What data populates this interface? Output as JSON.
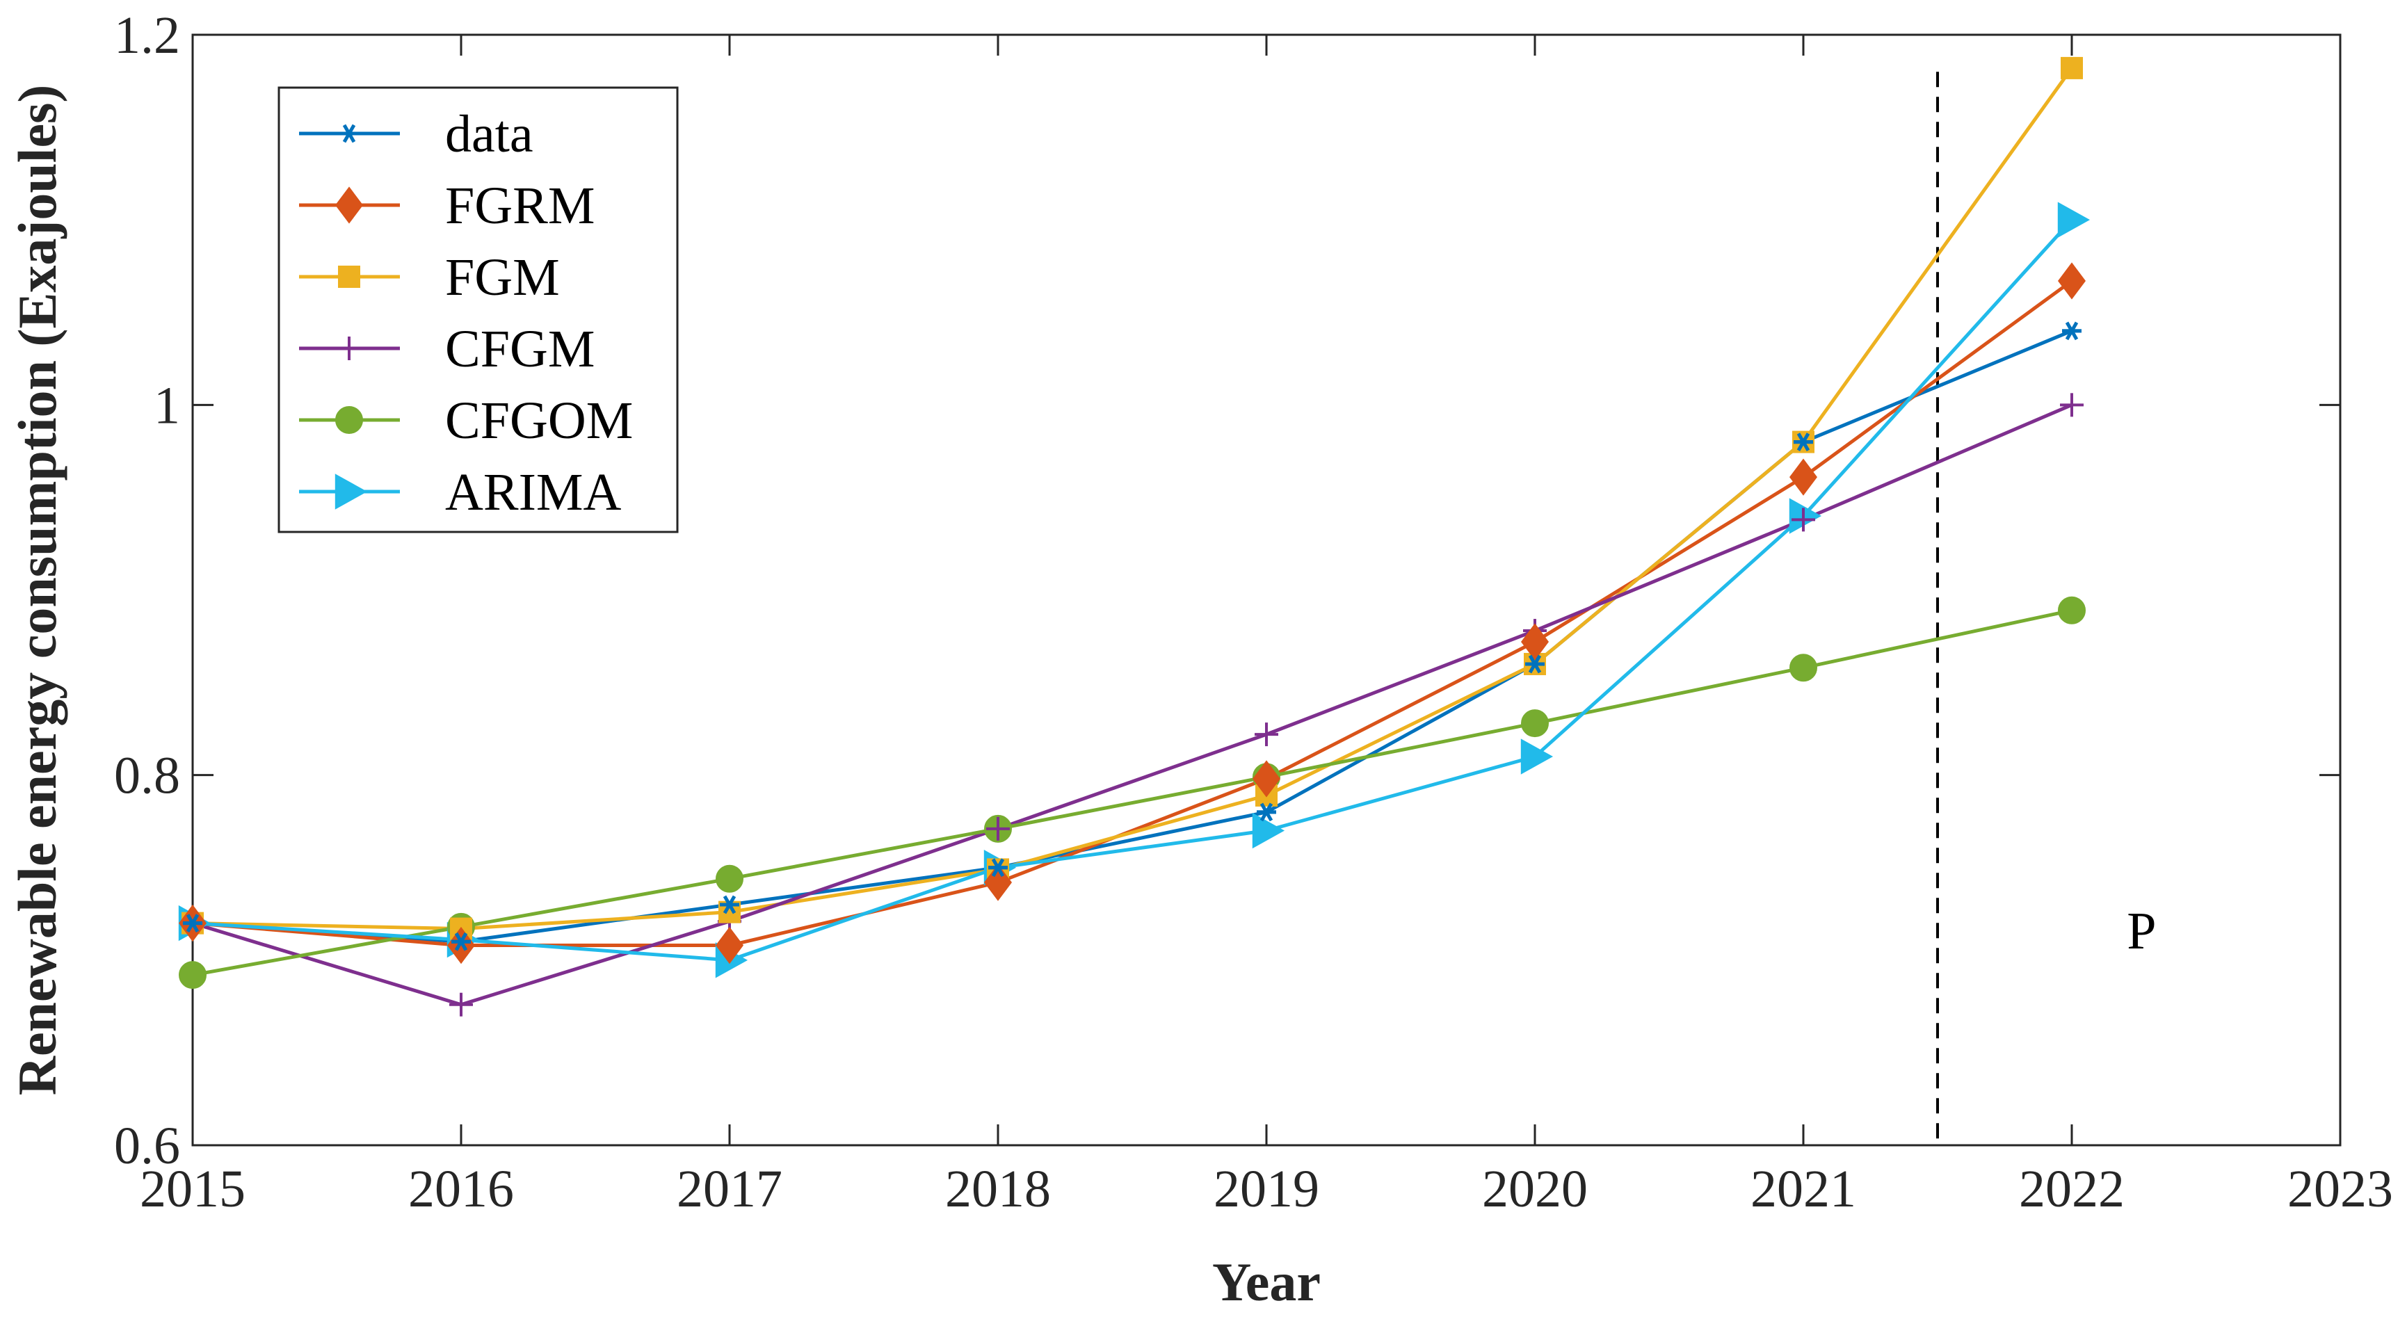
{
  "chart_data": {
    "type": "line",
    "title": "",
    "xlabel": "Year",
    "ylabel": "Renewable energy consumption (Exajoules)",
    "xlim": [
      2015,
      2023
    ],
    "ylim": [
      0.6,
      1.2
    ],
    "xticks": [
      "2015",
      "2016",
      "2017",
      "2018",
      "2019",
      "2020",
      "2021",
      "2022",
      "2023"
    ],
    "yticks": [
      "0.6",
      "0.8",
      "1",
      "1.2"
    ],
    "grid": false,
    "legend_position": "top-left",
    "x": [
      2015,
      2016,
      2017,
      2018,
      2019,
      2020,
      2021,
      2022
    ],
    "series": [
      {
        "name": "data",
        "color": "#0072BD",
        "marker": "asterisk",
        "values": [
          0.72,
          0.71,
          0.73,
          0.75,
          0.78,
          0.86,
          0.98,
          1.04
        ]
      },
      {
        "name": "FGRM",
        "color": "#D95319",
        "marker": "diamond",
        "values": [
          0.72,
          0.708,
          0.708,
          0.742,
          0.798,
          0.872,
          0.961,
          1.067
        ]
      },
      {
        "name": "FGM",
        "color": "#EDB120",
        "marker": "square",
        "values": [
          0.72,
          0.717,
          0.726,
          0.749,
          0.789,
          0.86,
          0.98,
          1.182
        ]
      },
      {
        "name": "CFGM",
        "color": "#7E2F8E",
        "marker": "plus",
        "values": [
          0.72,
          0.676,
          0.721,
          0.771,
          0.822,
          0.878,
          0.938,
          1.0
        ]
      },
      {
        "name": "CFGOM",
        "color": "#77AC30",
        "marker": "circle",
        "values": [
          0.692,
          0.718,
          0.744,
          0.771,
          0.799,
          0.828,
          0.858,
          0.889
        ]
      },
      {
        "name": "ARIMA",
        "color": "#21BAEA",
        "marker": "triangle-right",
        "values": [
          0.72,
          0.711,
          0.7,
          0.75,
          0.77,
          0.81,
          0.94,
          1.1
        ]
      }
    ],
    "divider_x": 2021.5,
    "annotations": [
      {
        "text": "P",
        "x": 2022.26,
        "y": 0.716
      }
    ]
  }
}
